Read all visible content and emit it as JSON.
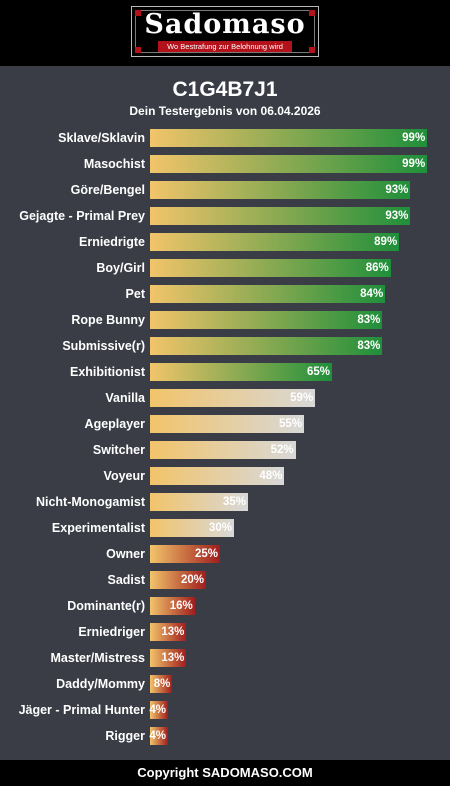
{
  "header": {
    "logo_text": "Sadomaso",
    "logo_tagline": "Wo Bestrafung zur Belohnung wird",
    "colors": {
      "background": "#000000",
      "tagline_bg": "#b3121b"
    }
  },
  "result": {
    "title": "C1G4B7J1",
    "subtitle": "Dein Testergebnis von 06.04.2026"
  },
  "chart_data": {
    "type": "bar",
    "orientation": "horizontal",
    "categories": [
      "Sklave/Sklavin",
      "Masochist",
      "Göre/Bengel",
      "Gejagte - Primal Prey",
      "Erniedrigte",
      "Boy/Girl",
      "Pet",
      "Rope Bunny",
      "Submissive(r)",
      "Exhibitionist",
      "Vanilla",
      "Ageplayer",
      "Switcher",
      "Voyeur",
      "Nicht-Monogamist",
      "Experimentalist",
      "Owner",
      "Sadist",
      "Dominante(r)",
      "Erniedriger",
      "Master/Mistress",
      "Daddy/Mommy",
      "Jäger - Primal Hunter",
      "Rigger"
    ],
    "values": [
      99,
      99,
      93,
      93,
      89,
      86,
      84,
      83,
      83,
      65,
      59,
      55,
      52,
      48,
      35,
      30,
      25,
      20,
      16,
      13,
      13,
      8,
      4,
      4
    ],
    "value_labels": [
      "99%",
      "99%",
      "93%",
      "93%",
      "89%",
      "86%",
      "84%",
      "83%",
      "83%",
      "65%",
      "59%",
      "55%",
      "52%",
      "48%",
      "35%",
      "30%",
      "25%",
      "20%",
      "16%",
      "13%",
      "13%",
      "8%",
      "4%",
      "4%"
    ],
    "groups": [
      "green",
      "green",
      "green",
      "green",
      "green",
      "green",
      "green",
      "green",
      "green",
      "green",
      "neutral",
      "neutral",
      "neutral",
      "neutral",
      "neutral",
      "neutral",
      "red",
      "red",
      "red",
      "red",
      "red",
      "red",
      "red",
      "red"
    ],
    "xlim": [
      0,
      100
    ],
    "colors": {
      "start": "#f2c46a",
      "green": "#1f8f3a",
      "neutral": "#d8d8d8",
      "red": "#a01d1d"
    }
  },
  "footer": {
    "text": "Copyright SADOMASO.COM"
  }
}
